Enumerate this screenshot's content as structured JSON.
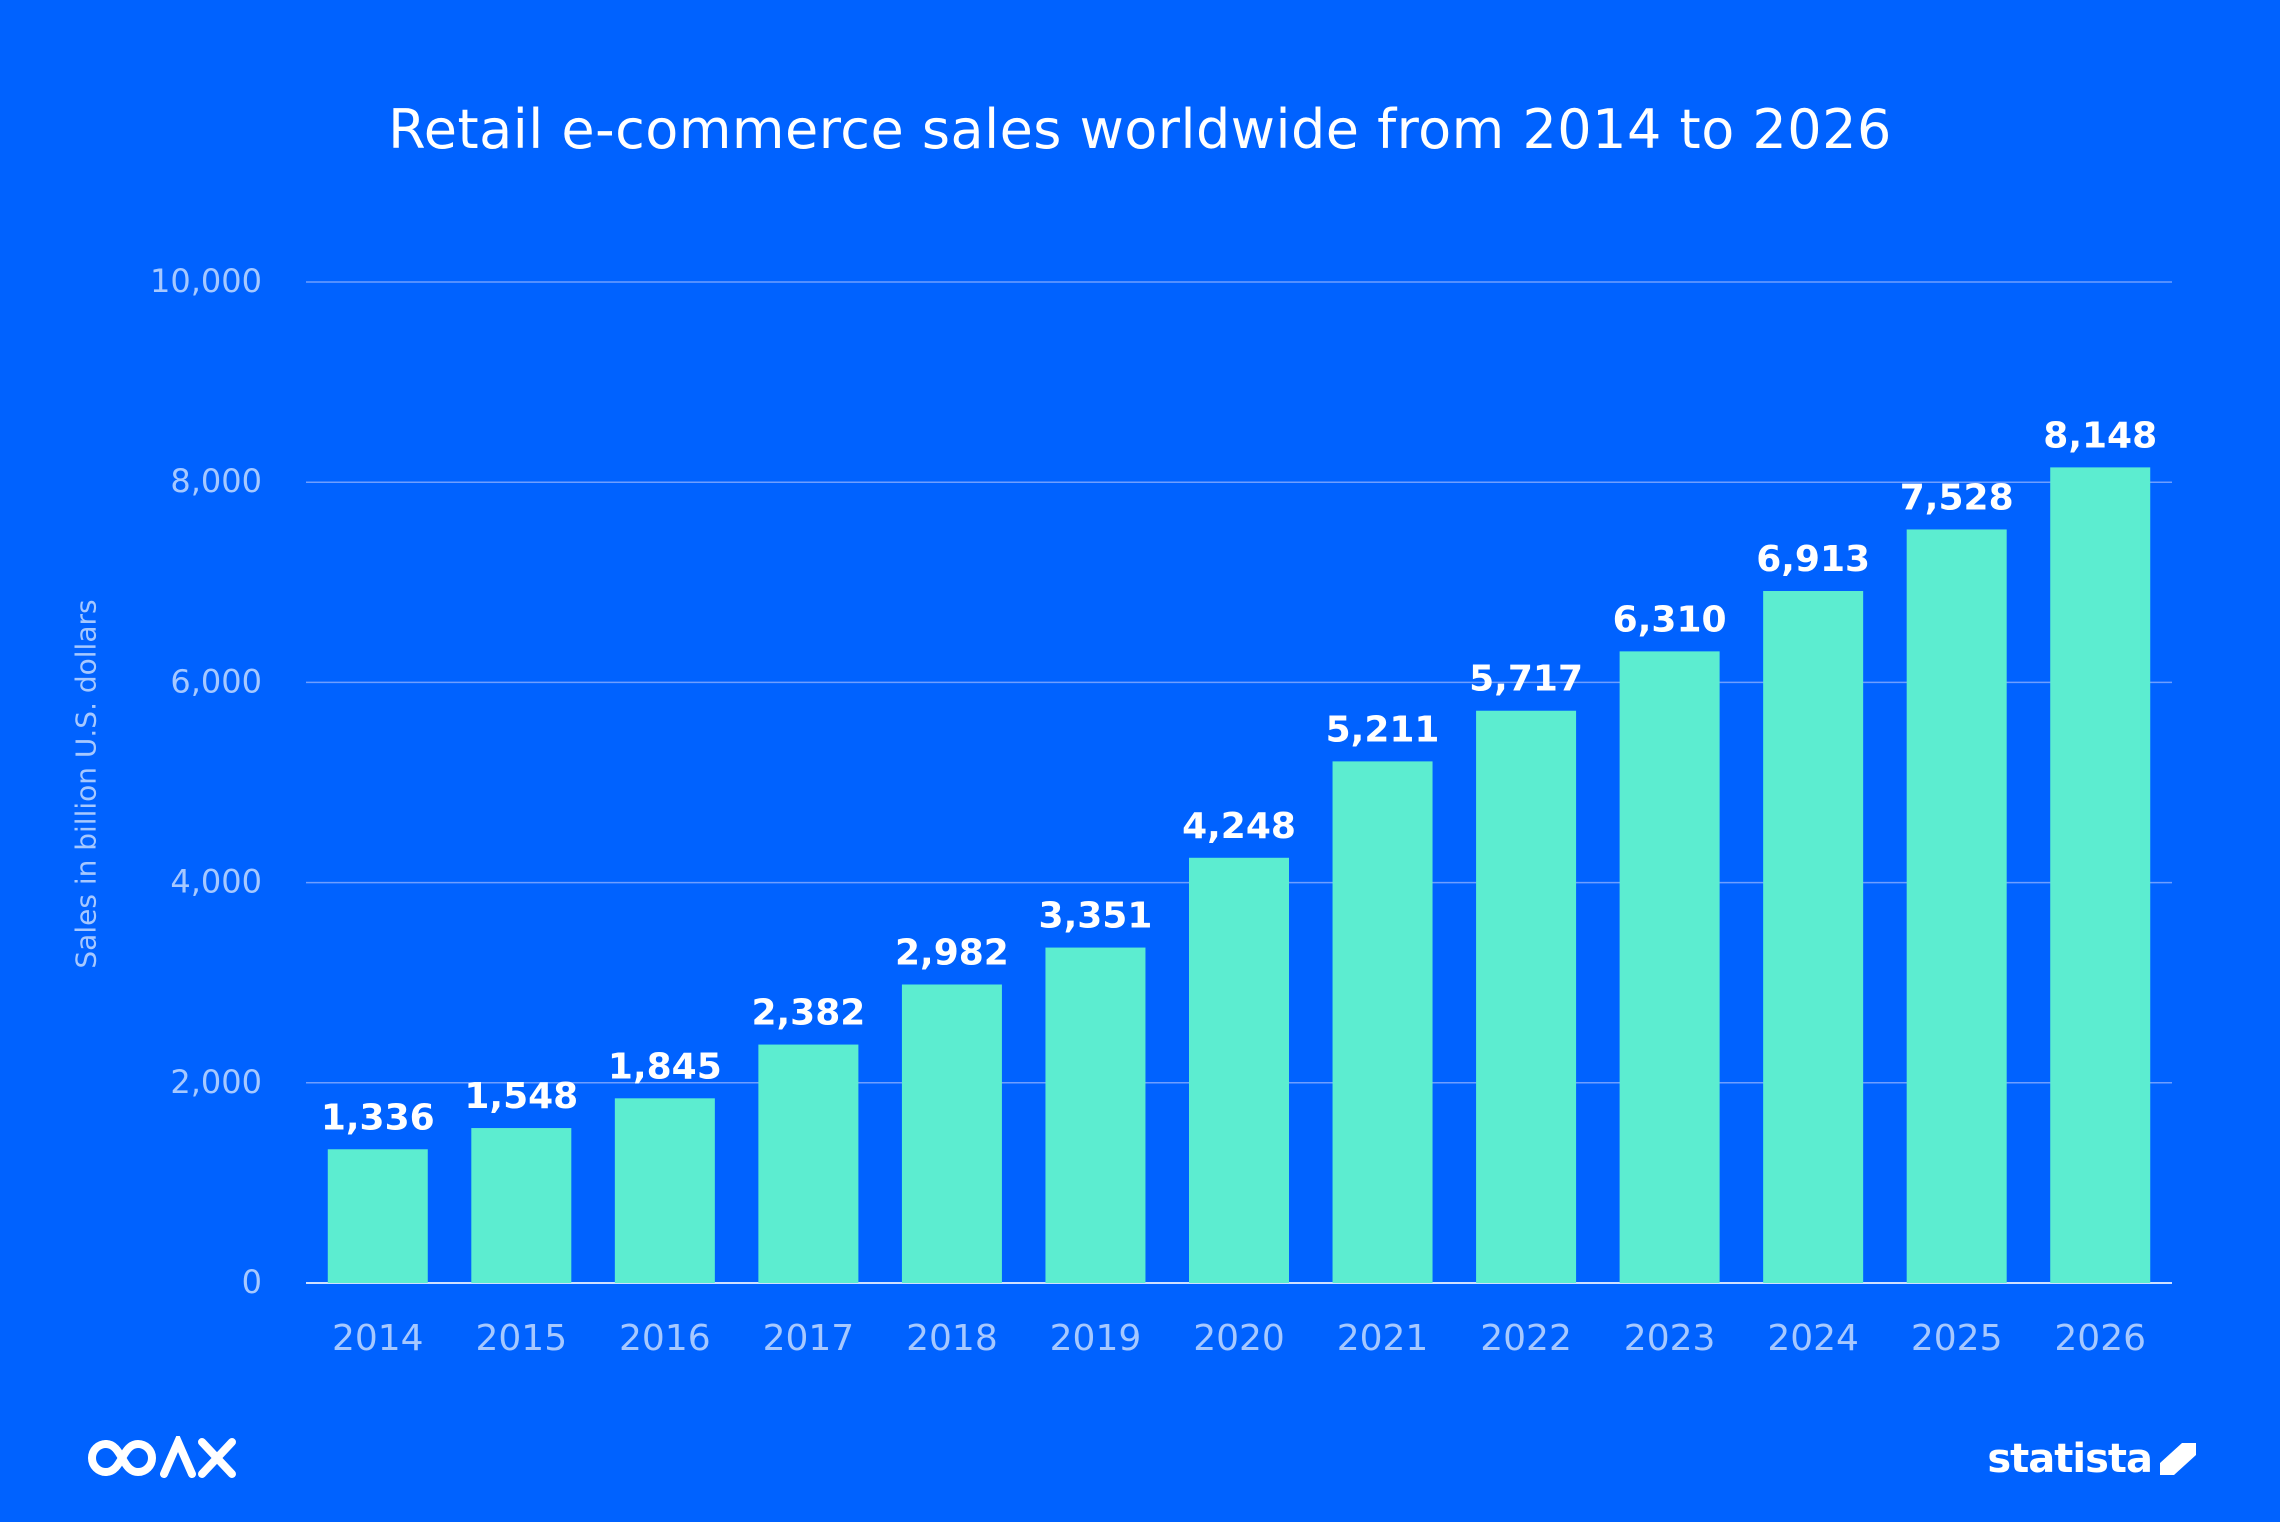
{
  "brand": {
    "left_logo": "COAX",
    "right_logo": "statista",
    "right_logo_icon": "statista-mark-icon"
  },
  "colors": {
    "background": "#0062FF",
    "bar": "#5CEDD0",
    "text": "#FFFFFF",
    "axis_text": "#A6C8FF",
    "grid": "#6E9EFF"
  },
  "chart_data": {
    "type": "bar",
    "title": "Retail e-commerce sales worldwide from 2014 to 2026",
    "xlabel": "",
    "ylabel": "Sales in billion U.S. dollars",
    "ylim": [
      0,
      10000
    ],
    "yticks": [
      0,
      2000,
      4000,
      6000,
      8000,
      10000
    ],
    "ytick_labels": [
      "0",
      "2,000",
      "4,000",
      "6,000",
      "8,000",
      "10,000"
    ],
    "grid": true,
    "categories": [
      "2014",
      "2015",
      "2016",
      "2017",
      "2018",
      "2019",
      "2020",
      "2021",
      "2022",
      "2023",
      "2024",
      "2025",
      "2026"
    ],
    "values": [
      1336,
      1548,
      1845,
      2382,
      2982,
      3351,
      4248,
      5211,
      5717,
      6310,
      6913,
      7528,
      8148
    ],
    "value_labels": [
      "1,336",
      "1,548",
      "1,845",
      "2,382",
      "2,982",
      "3,351",
      "4,248",
      "5,211",
      "5,717",
      "6,310",
      "6,913",
      "7,528",
      "8,148"
    ]
  }
}
